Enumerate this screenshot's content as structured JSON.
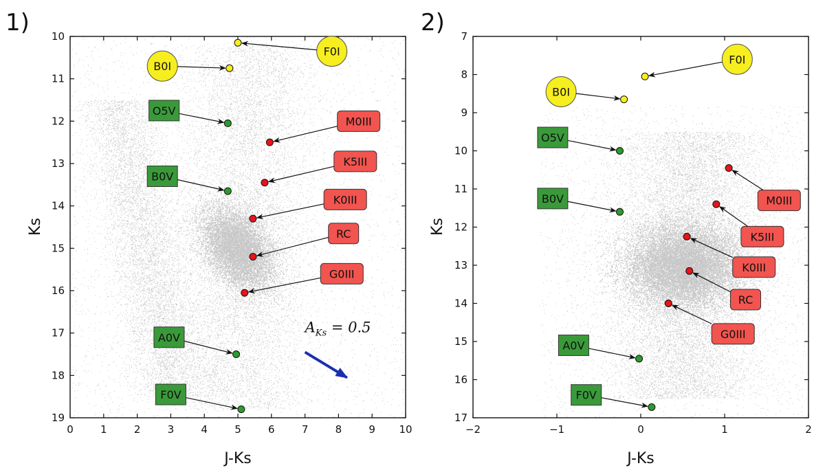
{
  "colors": {
    "o_b_v_star": "#2e9a2e",
    "o_b_v_box": "#3a9a3a",
    "giant_point": "#e8141a",
    "giant_box": "#f2544f",
    "supergiant": "#f6ee1e",
    "arrow_extinction": "#1a2fb0",
    "scatter": "#000000"
  },
  "chart_data": [
    {
      "type": "scatter",
      "panel_label": "1)",
      "xlabel": "J-Ks",
      "ylabel": "Ks",
      "xlim": [
        0,
        10
      ],
      "ylim": [
        19,
        10
      ],
      "y_inverted": true,
      "xticks": [
        "0",
        "1",
        "2",
        "3",
        "4",
        "5",
        "6",
        "7",
        "8",
        "9",
        "10"
      ],
      "yticks": [
        "10",
        "11",
        "12",
        "13",
        "14",
        "15",
        "16",
        "17",
        "18",
        "19"
      ],
      "grid": false,
      "background_cloud": "dense grey field-star scatter; main clump near J-Ks≈5, Ks≈15; blue sequence from (1,12) down to (3,18)",
      "points": [
        {
          "label": "F0I",
          "x": 5.0,
          "y": 10.15,
          "class": "supergiant",
          "box_x": 7.8,
          "box_y": 10.35
        },
        {
          "label": "B0I",
          "x": 4.75,
          "y": 10.75,
          "class": "supergiant",
          "box_x": 2.75,
          "box_y": 10.7
        },
        {
          "label": "O5V",
          "x": 4.7,
          "y": 12.05,
          "class": "dwarf",
          "box_x": 2.8,
          "box_y": 11.75
        },
        {
          "label": "M0III",
          "x": 5.95,
          "y": 12.5,
          "class": "giant",
          "box_x": 8.6,
          "box_y": 12.0
        },
        {
          "label": "K5III",
          "x": 5.8,
          "y": 13.45,
          "class": "giant",
          "box_x": 8.5,
          "box_y": 12.95
        },
        {
          "label": "B0V",
          "x": 4.7,
          "y": 13.65,
          "class": "dwarf",
          "box_x": 2.75,
          "box_y": 13.3
        },
        {
          "label": "K0III",
          "x": 5.45,
          "y": 14.3,
          "class": "giant",
          "box_x": 8.2,
          "box_y": 13.85
        },
        {
          "label": "RC",
          "x": 5.45,
          "y": 15.2,
          "class": "giant",
          "box_x": 8.15,
          "box_y": 14.65
        },
        {
          "label": "G0III",
          "x": 5.2,
          "y": 16.05,
          "class": "giant",
          "box_x": 8.1,
          "box_y": 15.6
        },
        {
          "label": "A0V",
          "x": 4.95,
          "y": 17.5,
          "class": "dwarf",
          "box_x": 2.95,
          "box_y": 17.1
        },
        {
          "label": "F0V",
          "x": 5.1,
          "y": 18.8,
          "class": "dwarf",
          "box_x": 3.0,
          "box_y": 18.45
        }
      ],
      "extinction_arrow": {
        "label": "A_{Ks} = 0.5",
        "x0": 7.0,
        "y0": 17.45,
        "x1": 8.25,
        "y1": 18.05,
        "label_x": 7.0,
        "label_y": 16.98
      }
    },
    {
      "type": "scatter",
      "panel_label": "2)",
      "xlabel": "J-Ks",
      "ylabel": "Ks",
      "xlim": [
        -2,
        2
      ],
      "ylim": [
        17,
        7
      ],
      "y_inverted": true,
      "xticks": [
        "−2",
        "−1",
        "0",
        "1",
        "2"
      ],
      "yticks": [
        "7",
        "8",
        "9",
        "10",
        "11",
        "12",
        "13",
        "14",
        "15",
        "16",
        "17"
      ],
      "grid": false,
      "background_cloud": "dense grey field-star scatter centred near J-Ks≈0.5, Ks≈13",
      "points": [
        {
          "label": "F0I",
          "x": 0.05,
          "y": 8.05,
          "class": "supergiant",
          "box_x": 1.15,
          "box_y": 7.6
        },
        {
          "label": "B0I",
          "x": -0.2,
          "y": 8.65,
          "class": "supergiant",
          "box_x": -0.95,
          "box_y": 8.45
        },
        {
          "label": "O5V",
          "x": -0.25,
          "y": 10.0,
          "class": "dwarf",
          "box_x": -1.05,
          "box_y": 9.65
        },
        {
          "label": "B0V",
          "x": -0.25,
          "y": 11.6,
          "class": "dwarf",
          "box_x": -1.05,
          "box_y": 11.25
        },
        {
          "label": "M0III",
          "x": 1.05,
          "y": 10.45,
          "class": "giant",
          "box_x": 1.65,
          "box_y": 11.3
        },
        {
          "label": "K5III",
          "x": 0.9,
          "y": 11.4,
          "class": "giant",
          "box_x": 1.45,
          "box_y": 12.25
        },
        {
          "label": "K0III",
          "x": 0.55,
          "y": 12.25,
          "class": "giant",
          "box_x": 1.35,
          "box_y": 13.05
        },
        {
          "label": "RC",
          "x": 0.58,
          "y": 13.15,
          "class": "giant",
          "box_x": 1.25,
          "box_y": 13.9
        },
        {
          "label": "G0III",
          "x": 0.33,
          "y": 14.0,
          "class": "giant",
          "box_x": 1.1,
          "box_y": 14.8
        },
        {
          "label": "A0V",
          "x": -0.02,
          "y": 15.45,
          "class": "dwarf",
          "box_x": -0.8,
          "box_y": 15.1
        },
        {
          "label": "F0V",
          "x": 0.13,
          "y": 16.72,
          "class": "dwarf",
          "box_x": -0.65,
          "box_y": 16.4
        }
      ]
    }
  ]
}
